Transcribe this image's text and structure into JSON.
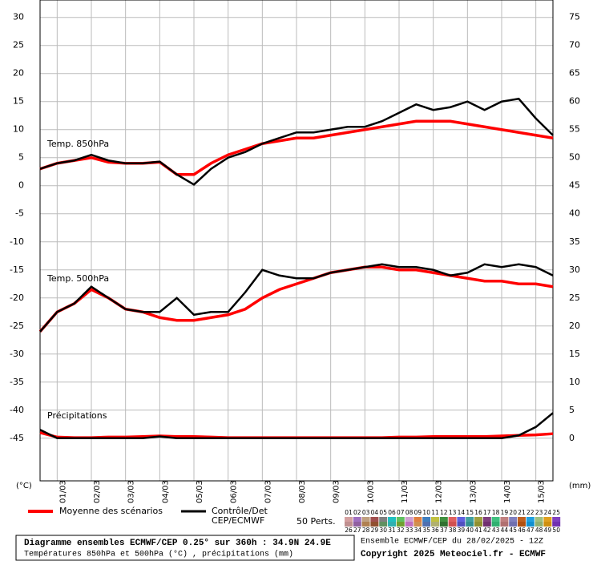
{
  "chart_data": {
    "type": "line",
    "x": [
      0,
      12,
      24,
      36,
      48,
      60,
      72,
      84,
      96,
      108,
      120,
      132,
      144,
      156,
      168,
      180,
      192,
      204,
      216,
      228,
      240,
      252,
      264,
      276,
      288,
      300,
      312,
      324,
      336,
      348,
      360
    ],
    "xlim": [
      0,
      360
    ],
    "xticks": [
      {
        "value": 12,
        "label": "01/03"
      },
      {
        "value": 36,
        "label": "02/03"
      },
      {
        "value": 60,
        "label": "03/03"
      },
      {
        "value": 84,
        "label": "04/03"
      },
      {
        "value": 108,
        "label": "05/03"
      },
      {
        "value": 132,
        "label": "06/03"
      },
      {
        "value": 156,
        "label": "07/03"
      },
      {
        "value": 180,
        "label": "08/03"
      },
      {
        "value": 204,
        "label": "09/03"
      },
      {
        "value": 228,
        "label": "10/03"
      },
      {
        "value": 252,
        "label": "11/03"
      },
      {
        "value": 276,
        "label": "12/03"
      },
      {
        "value": 300,
        "label": "13/03"
      },
      {
        "value": 324,
        "label": "14/03"
      },
      {
        "value": 348,
        "label": "15/03"
      }
    ],
    "ylim": [
      -52.6,
      33.1
    ],
    "yticks": [
      30,
      25,
      20,
      15,
      10,
      5,
      0,
      -5,
      -10,
      -15,
      -20,
      -25,
      -30,
      -35,
      -40,
      -45
    ],
    "y2lim": [
      -7.6,
      78.1
    ],
    "y2ticks": [
      75,
      70,
      65,
      60,
      55,
      50,
      45,
      40,
      35,
      30,
      25,
      20,
      15,
      10,
      5,
      0
    ],
    "ylabel": "(°C)",
    "y2label": "(mm)",
    "grid": true,
    "mean_color": "#ff0000",
    "control_color": "#000000",
    "panels": [
      {
        "label": "Temp. 850hPa",
        "axis": "y",
        "mean": [
          3,
          4,
          4.5,
          5,
          4.2,
          4,
          4,
          4.2,
          2,
          2,
          4,
          5.5,
          6.5,
          7.5,
          8,
          8.5,
          8.5,
          9,
          9.5,
          10,
          10.5,
          11,
          11.5,
          11.5,
          11.5,
          11,
          10.5,
          10,
          9.5,
          9,
          8.5
        ],
        "control": [
          3,
          4,
          4.5,
          5.5,
          4.5,
          4,
          4,
          4.3,
          2,
          0.2,
          3,
          5,
          6,
          7.5,
          8.5,
          9.5,
          9.5,
          10,
          10.5,
          10.5,
          11.5,
          13,
          14.5,
          13.5,
          14,
          15,
          13.5,
          15,
          15.5,
          12,
          9
        ]
      },
      {
        "label": "Temp. 500hPa",
        "axis": "y",
        "mean": [
          -26,
          -22.5,
          -21,
          -18.5,
          -20,
          -22,
          -22.5,
          -23.5,
          -24,
          -24,
          -23.5,
          -23,
          -22,
          -20,
          -18.5,
          -17.5,
          -16.5,
          -15.5,
          -15,
          -14.5,
          -14.5,
          -15,
          -15,
          -15.5,
          -16,
          -16.5,
          -17,
          -17,
          -17.5,
          -17.5,
          -18
        ],
        "control": [
          -26,
          -22.5,
          -21,
          -18,
          -20,
          -22,
          -22.5,
          -22.5,
          -20,
          -23,
          -22.5,
          -22.5,
          -19,
          -15,
          -16,
          -16.5,
          -16.5,
          -15.5,
          -15,
          -14.5,
          -14,
          -14.5,
          -14.5,
          -15,
          -16,
          -15.5,
          -14,
          -14.5,
          -14,
          -14.5,
          -16
        ]
      },
      {
        "label": "Précipitations",
        "axis": "y2",
        "mean": [
          1,
          0.2,
          0.1,
          0.1,
          0.2,
          0.2,
          0.3,
          0.4,
          0.3,
          0.3,
          0.2,
          0.1,
          0.1,
          0.1,
          0.1,
          0.1,
          0.1,
          0.1,
          0.1,
          0.1,
          0.1,
          0.2,
          0.2,
          0.3,
          0.3,
          0.3,
          0.3,
          0.4,
          0.5,
          0.6,
          0.8
        ],
        "control": [
          1.5,
          0,
          0,
          0,
          0,
          0,
          0,
          0.3,
          0,
          0,
          0,
          0,
          0,
          0,
          0,
          0,
          0,
          0,
          0,
          0,
          0,
          0,
          0,
          0,
          0,
          0,
          0,
          0,
          0.5,
          2,
          4.5
        ]
      }
    ],
    "legend": {
      "mean": "Moyenne des scénarios",
      "control": [
        "Contrôle/Det",
        "CEP/ECMWF"
      ],
      "members_label": "50 Perts.",
      "members": [
        {
          "name": "01",
          "color": "#d4a0a0"
        },
        {
          "name": "02",
          "color": "#a070c0"
        },
        {
          "name": "03",
          "color": "#c0a080"
        },
        {
          "name": "04",
          "color": "#a05050"
        },
        {
          "name": "05",
          "color": "#808080"
        },
        {
          "name": "06",
          "color": "#20c0c0"
        },
        {
          "name": "07",
          "color": "#60c060"
        },
        {
          "name": "08",
          "color": "#d0a0d0"
        },
        {
          "name": "09",
          "color": "#e08040"
        },
        {
          "name": "10",
          "color": "#4080c0"
        },
        {
          "name": "11",
          "color": "#c0c040"
        },
        {
          "name": "12",
          "color": "#409040"
        },
        {
          "name": "13",
          "color": "#e06060"
        },
        {
          "name": "14",
          "color": "#6060e0"
        },
        {
          "name": "15",
          "color": "#40a0a0"
        },
        {
          "name": "16",
          "color": "#a0a040"
        },
        {
          "name": "17",
          "color": "#804080"
        },
        {
          "name": "18",
          "color": "#40c080"
        },
        {
          "name": "19",
          "color": "#c08080"
        },
        {
          "name": "20",
          "color": "#8080c0"
        },
        {
          "name": "21",
          "color": "#c06020"
        },
        {
          "name": "22",
          "color": "#20a0e0"
        },
        {
          "name": "23",
          "color": "#a0c080"
        },
        {
          "name": "24",
          "color": "#e0a020"
        },
        {
          "name": "25",
          "color": "#8040c0"
        },
        {
          "name": "26",
          "color": "#c09090"
        },
        {
          "name": "27",
          "color": "#9060a0"
        },
        {
          "name": "28",
          "color": "#b08050"
        },
        {
          "name": "29",
          "color": "#905030"
        },
        {
          "name": "30",
          "color": "#609060"
        },
        {
          "name": "31",
          "color": "#30b0b0"
        },
        {
          "name": "32",
          "color": "#70a030"
        },
        {
          "name": "33",
          "color": "#c070c0"
        },
        {
          "name": "34",
          "color": "#d09050"
        },
        {
          "name": "35",
          "color": "#5070b0"
        },
        {
          "name": "36",
          "color": "#b0b070"
        },
        {
          "name": "37",
          "color": "#307030"
        },
        {
          "name": "38",
          "color": "#d05050"
        },
        {
          "name": "39",
          "color": "#5050c0"
        },
        {
          "name": "40",
          "color": "#309090"
        },
        {
          "name": "41",
          "color": "#909030"
        },
        {
          "name": "42",
          "color": "#703070"
        },
        {
          "name": "43",
          "color": "#30b070"
        },
        {
          "name": "44",
          "color": "#b07070"
        },
        {
          "name": "45",
          "color": "#7070b0"
        },
        {
          "name": "46",
          "color": "#b05010"
        },
        {
          "name": "47",
          "color": "#1090d0"
        },
        {
          "name": "48",
          "color": "#90b070"
        },
        {
          "name": "49",
          "color": "#d09010"
        },
        {
          "name": "50",
          "color": "#7030b0"
        }
      ]
    }
  },
  "footer": {
    "title": "Diagramme ensembles ECMWF/CEP 0.25° sur 360h : 34.9N 24.9E",
    "subtitle": "Températures 850hPa et 500hPa (°C) , précipitations (mm)",
    "run": "Ensemble ECMWF/CEP du 28/02/2025 - 12Z",
    "copyright": "Copyright 2025 Meteociel.fr - ECMWF"
  }
}
